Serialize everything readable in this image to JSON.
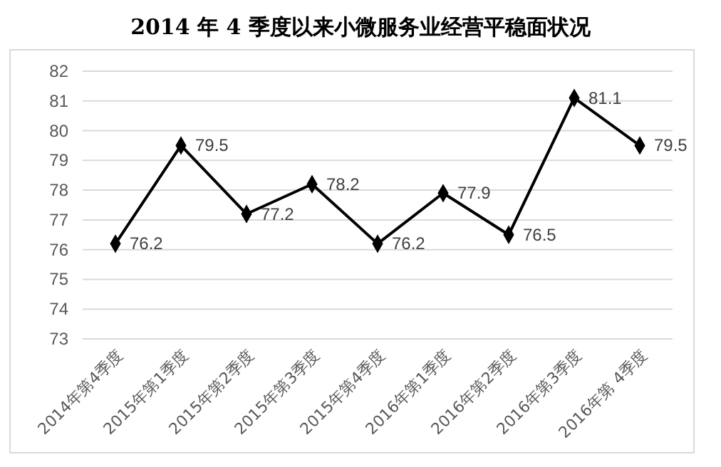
{
  "chart_data": {
    "type": "line",
    "title": "2014 年 4 季度以来小微服务业经营平稳面状况",
    "categories": [
      "2014年第4季度",
      "2015年第1季度",
      "2015年第2季度",
      "2015年第3季度",
      "2015年第4季度",
      "2016年第1季度",
      "2016年第2季度",
      "2016年第3季度",
      "2016年第 4季度"
    ],
    "series": [
      {
        "color": "#000000",
        "values": [
          76.2,
          79.5,
          77.2,
          78.2,
          76.2,
          77.9,
          76.5,
          81.1,
          79.5
        ]
      }
    ],
    "ylim": [
      73,
      82
    ],
    "yticks": [
      73,
      74,
      75,
      76,
      77,
      78,
      79,
      80,
      81,
      82
    ],
    "grid": "y",
    "marker": "diamond",
    "line_style": "solid",
    "data_labels": true
  }
}
